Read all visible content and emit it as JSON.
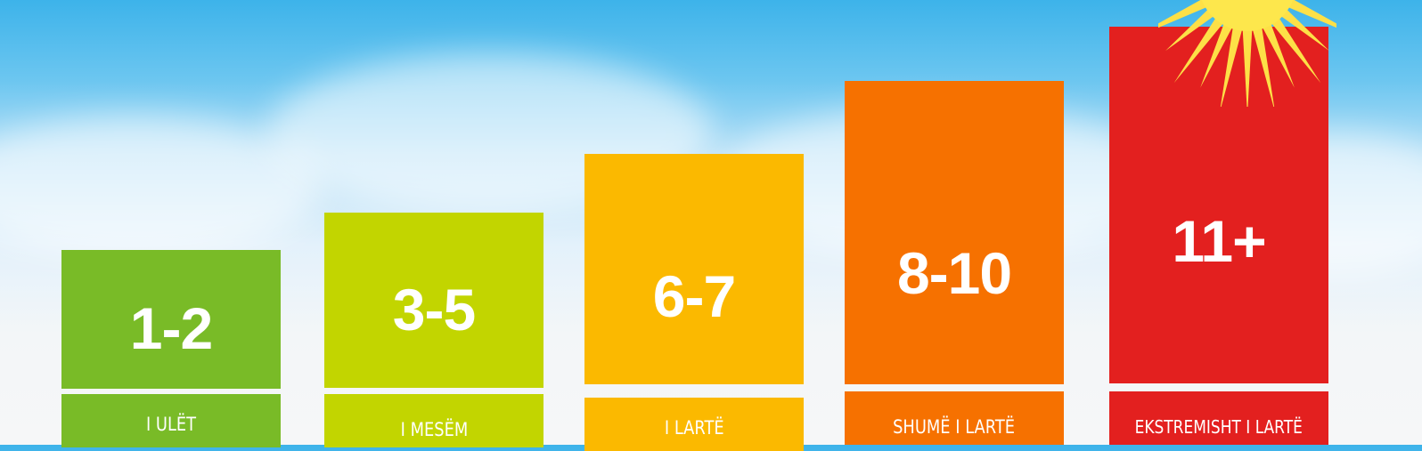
{
  "levels": [
    {
      "range": "1-2",
      "label": "I ULËT",
      "color": "#79bb27"
    },
    {
      "range": "3-5",
      "label": "I MESËM",
      "color": "#c2d500"
    },
    {
      "range": "6-7",
      "label": "I LARTË",
      "color": "#fbb900"
    },
    {
      "range": "8-10",
      "label": "SHUMË I LARTË",
      "color": "#f67100"
    },
    {
      "range": "11+",
      "label": "EKSTREMISHT I LARTË",
      "color": "#e3201f"
    }
  ],
  "sun_icon": "sun-icon"
}
